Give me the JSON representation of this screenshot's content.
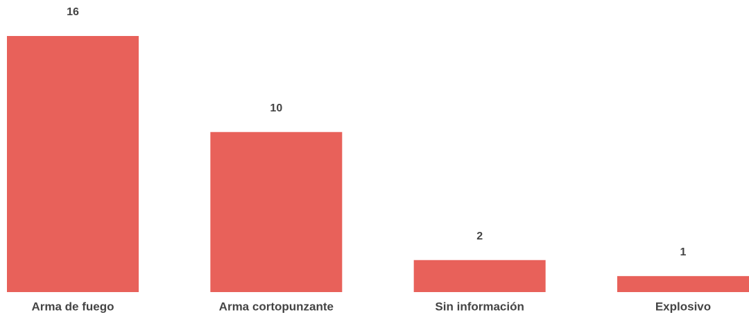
{
  "chart_data": {
    "type": "bar",
    "categories": [
      "Arma de fuego",
      "Arma cortopunzante",
      "Sin información",
      "Explosivo"
    ],
    "values": [
      16,
      10,
      2,
      1
    ],
    "color": "#e8615a"
  }
}
